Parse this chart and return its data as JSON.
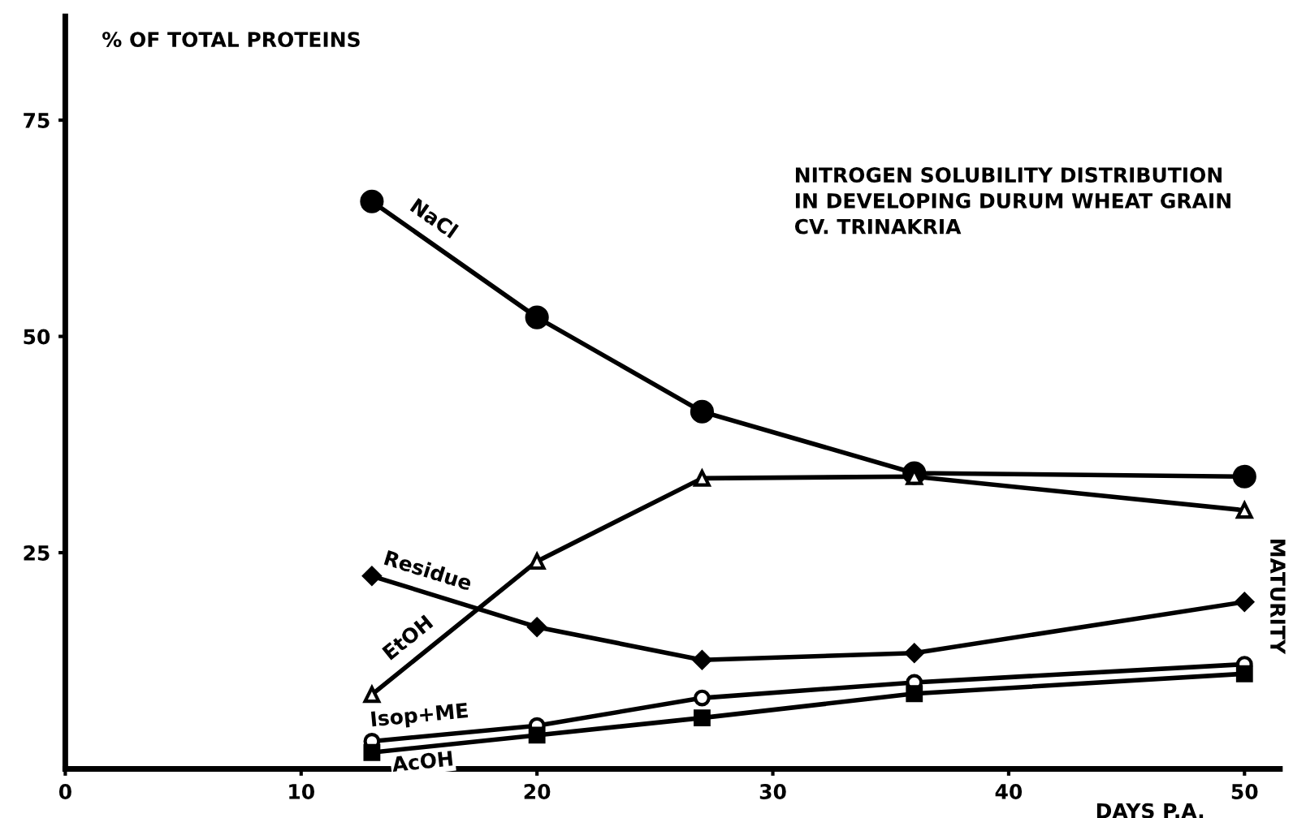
{
  "chart_data": {
    "type": "line",
    "title": "NITROGEN SOLUBILITY DISTRIBUTION\nIN DEVELOPING DURUM WHEAT GRAIN\nCV. TRINAKRIA",
    "ylabel": "% OF TOTAL PROTEINS",
    "xlabel": "DAYS P.A.",
    "annotations": [
      {
        "text": "MATURITY",
        "x": 50,
        "y": 20
      }
    ],
    "x": [
      13,
      20,
      27,
      36,
      50
    ],
    "series": [
      {
        "name": "NaCl",
        "color": "#000000",
        "marker": "circle",
        "values": [
          65.6,
          52.2,
          41.3,
          34.2,
          33.8
        ]
      },
      {
        "name": "EtOH",
        "color": "#000000",
        "marker": "triangle",
        "values": [
          8.6,
          24.0,
          33.6,
          33.8,
          29.9
        ]
      },
      {
        "name": "Residue",
        "color": "#000000",
        "marker": "diamond",
        "values": [
          22.3,
          16.4,
          12.6,
          13.4,
          19.3
        ]
      },
      {
        "name": "Isop+ME",
        "color": "#000000",
        "marker": "circle",
        "values": [
          3.2,
          5.0,
          8.2,
          10.0,
          12.1
        ]
      },
      {
        "name": "AcOH",
        "color": "#000000",
        "marker": "square",
        "values": [
          1.9,
          3.9,
          5.9,
          8.7,
          11.0
        ]
      }
    ],
    "xlim": [
      0,
      51.5
    ],
    "ylim": [
      0,
      87
    ],
    "xticks": [
      0,
      10,
      20,
      30,
      40,
      50
    ],
    "yticks": [
      25,
      50,
      75
    ],
    "grid": false,
    "legend": false,
    "line_style": "solid"
  }
}
